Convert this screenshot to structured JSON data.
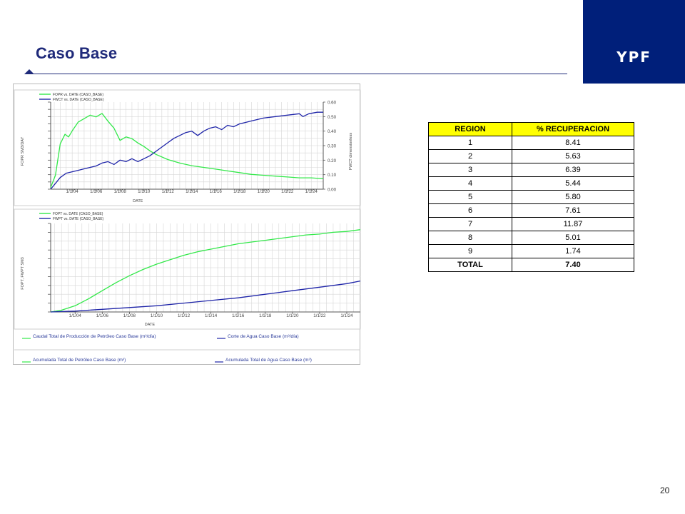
{
  "slide": {
    "title": "Caso Base",
    "page_number": "20"
  },
  "logo": {
    "text": "YPF"
  },
  "colors": {
    "brand_navy": "#1f2a7a",
    "logo_bg": "#001f7a",
    "oil": "#33e84a",
    "water": "#1e24a8",
    "table_header": "#ffff00"
  },
  "table": {
    "headers": [
      "REGION",
      "% RECUPERACION"
    ],
    "rows": [
      [
        "1",
        "8.41"
      ],
      [
        "2",
        "5.63"
      ],
      [
        "3",
        "6.39"
      ],
      [
        "4",
        "5.44"
      ],
      [
        "5",
        "5.80"
      ],
      [
        "6",
        "7.61"
      ],
      [
        "7",
        "11.87"
      ],
      [
        "8",
        "5.01"
      ],
      [
        "9",
        "1.74"
      ]
    ],
    "total": [
      "TOTAL",
      "7.40"
    ]
  },
  "legend": [
    "Caudal Total de Producción de Petróleo Caso Base  (m³/día)",
    "Corte de Agua Caso Base (m³/día)",
    "Acumulada Total de Petróleo Caso Base (m³)",
    "Acumulada Total de Agua Caso Base (m³)"
  ],
  "chart_data": [
    {
      "type": "line",
      "xlabel": "DATE",
      "ylabel": "FOPR  SM3/DAY",
      "y2label": "FWCT  dimensionless",
      "grid": true,
      "x_ticks": [
        "1/1/04",
        "1/1/06",
        "1/1/08",
        "1/1/10",
        "1/1/12",
        "1/1/14",
        "1/1/16",
        "1/1/18",
        "1/1/20",
        "1/1/22",
        "1/1/24"
      ],
      "y2_ticks": [
        "0.60",
        "0.50",
        "0.40",
        "0.30",
        "0.20",
        "0.10",
        "0.00"
      ],
      "y2lim": [
        0,
        0.6
      ],
      "legend_entries": [
        "FOPR  vs.  DATE (CASO_BASE)",
        "FWCT  vs.  DATE (CASO_BASE)"
      ],
      "legend_position": "top-left",
      "series": [
        {
          "name": "FOPR  vs.  DATE (CASO_BASE)",
          "axis": "left",
          "color": "#33e84a",
          "x": [
            2002.2,
            2002.6,
            2003.0,
            2003.4,
            2003.7,
            2004.0,
            2004.5,
            2005.0,
            2005.5,
            2006.0,
            2006.5,
            2007.0,
            2007.5,
            2008.0,
            2008.5,
            2009.0,
            2009.5,
            2010.0,
            2010.5,
            2011.0,
            2012.0,
            2013.0,
            2014.0,
            2015.0,
            2016.0,
            2017.0,
            2018.0,
            2019.0,
            2020.0,
            2021.0,
            2022.0,
            2023.0,
            2024.0,
            2025.0
          ],
          "y": [
            0.02,
            0.16,
            0.52,
            0.63,
            0.6,
            0.67,
            0.77,
            0.81,
            0.85,
            0.83,
            0.87,
            0.78,
            0.7,
            0.56,
            0.6,
            0.58,
            0.53,
            0.49,
            0.44,
            0.4,
            0.34,
            0.3,
            0.27,
            0.25,
            0.23,
            0.21,
            0.19,
            0.17,
            0.16,
            0.15,
            0.14,
            0.13,
            0.13,
            0.12
          ],
          "y_note": "relative scale (fraction of axis height); left axis tick labels are not printed"
        },
        {
          "name": "FWCT  vs.  DATE (CASO_BASE)",
          "axis": "right",
          "color": "#1e24a8",
          "x": [
            2002.2,
            2002.6,
            2003.0,
            2003.5,
            2004.0,
            2004.5,
            2005.0,
            2005.5,
            2006.0,
            2006.5,
            2007.0,
            2007.5,
            2008.0,
            2008.5,
            2009.0,
            2009.5,
            2010.0,
            2010.5,
            2011.0,
            2011.5,
            2012.0,
            2012.5,
            2013.0,
            2013.5,
            2014.0,
            2014.5,
            2015.0,
            2015.5,
            2016.0,
            2016.5,
            2017.0,
            2017.5,
            2018.0,
            2018.5,
            2019.0,
            2019.5,
            2020.0,
            2021.0,
            2022.0,
            2023.0,
            2023.3,
            2023.8,
            2024.5,
            2025.0
          ],
          "y": [
            0.0,
            0.04,
            0.08,
            0.11,
            0.12,
            0.13,
            0.14,
            0.15,
            0.16,
            0.18,
            0.19,
            0.17,
            0.2,
            0.19,
            0.21,
            0.19,
            0.21,
            0.23,
            0.26,
            0.29,
            0.32,
            0.35,
            0.37,
            0.39,
            0.4,
            0.37,
            0.4,
            0.42,
            0.43,
            0.41,
            0.44,
            0.43,
            0.45,
            0.46,
            0.47,
            0.48,
            0.49,
            0.5,
            0.51,
            0.52,
            0.5,
            0.52,
            0.53,
            0.53
          ]
        }
      ]
    },
    {
      "type": "line",
      "xlabel": "DATE",
      "ylabel": "FOPT, FWPT  SM3",
      "grid": true,
      "x_ticks": [
        "1/1/04",
        "1/1/06",
        "1/1/08",
        "1/1/10",
        "1/1/12",
        "1/1/14",
        "1/1/16",
        "1/1/18",
        "1/1/20",
        "1/1/22",
        "1/1/24"
      ],
      "legend_entries": [
        "FOPT  vs.  DATE (CASO_BASE)",
        "FWPT  vs.  DATE (CASO_BASE)"
      ],
      "legend_position": "top-left",
      "series": [
        {
          "name": "FOPT  vs.  DATE (CASO_BASE)",
          "color": "#33e84a",
          "x": [
            2002.2,
            2003.0,
            2004.0,
            2005.0,
            2006.0,
            2007.0,
            2008.0,
            2009.0,
            2010.0,
            2011.0,
            2012.0,
            2013.0,
            2014.0,
            2015.0,
            2016.0,
            2017.0,
            2018.0,
            2019.0,
            2020.0,
            2021.0,
            2022.0,
            2023.0,
            2024.0,
            2025.0
          ],
          "y": [
            0.0,
            0.02,
            0.07,
            0.15,
            0.24,
            0.33,
            0.41,
            0.48,
            0.54,
            0.59,
            0.64,
            0.68,
            0.71,
            0.74,
            0.77,
            0.79,
            0.81,
            0.83,
            0.85,
            0.87,
            0.88,
            0.9,
            0.91,
            0.93
          ],
          "y_note": "relative scale (fraction of axis height); axis tick labels are not printed"
        },
        {
          "name": "FWPT  vs.  DATE (CASO_BASE)",
          "color": "#1e24a8",
          "x": [
            2002.2,
            2003.0,
            2004.0,
            2005.0,
            2006.0,
            2008.0,
            2010.0,
            2012.0,
            2014.0,
            2016.0,
            2018.0,
            2020.0,
            2022.0,
            2024.0,
            2025.0
          ],
          "y": [
            0.0,
            0.005,
            0.01,
            0.02,
            0.03,
            0.05,
            0.07,
            0.1,
            0.13,
            0.16,
            0.2,
            0.24,
            0.28,
            0.32,
            0.35
          ]
        }
      ]
    }
  ]
}
